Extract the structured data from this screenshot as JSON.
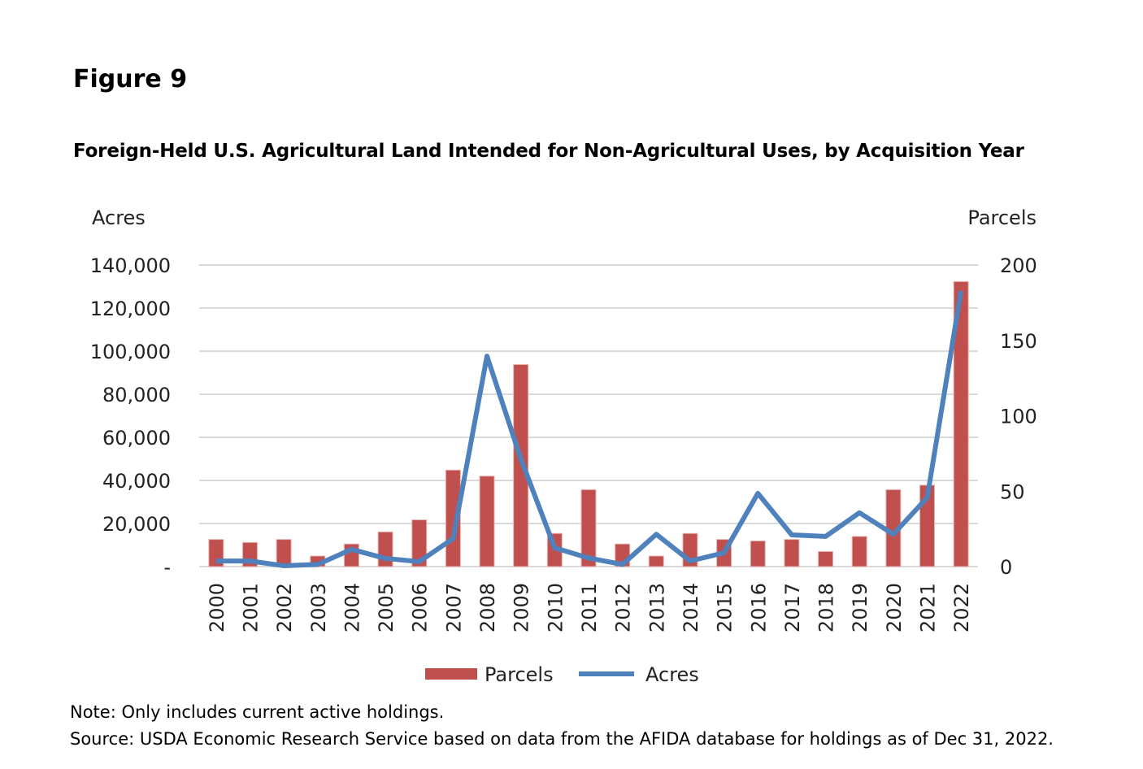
{
  "figure_label": "Figure 9",
  "note": "Note: Only includes current active holdings.",
  "source": "Source: USDA Economic Research Service based on data from the AFIDA database for holdings as of Dec 31, 2022.",
  "chart_data": {
    "type": "bar+line",
    "title": "Foreign-Held U.S. Agricultural Land Intended for Non-Agricultural Uses, by Acquisition Year",
    "categories": [
      "2000",
      "2001",
      "2002",
      "2003",
      "2004",
      "2005",
      "2006",
      "2007",
      "2008",
      "2009",
      "2010",
      "2011",
      "2012",
      "2013",
      "2014",
      "2015",
      "2016",
      "2017",
      "2018",
      "2019",
      "2020",
      "2021",
      "2022"
    ],
    "left_axis": {
      "label": "Acres",
      "ylim": [
        0,
        140000
      ],
      "ticks": [
        "-",
        "20,000",
        "40,000",
        "60,000",
        "80,000",
        "100,000",
        "120,000",
        "140,000"
      ]
    },
    "right_axis": {
      "label": "Parcels",
      "ylim": [
        0,
        200
      ],
      "ticks": [
        "0",
        "50",
        "100",
        "150",
        "200"
      ]
    },
    "grid": true,
    "legend_position": "bottom",
    "series": [
      {
        "name": "Parcels",
        "type": "bar",
        "axis": "right",
        "color": "#C0504D",
        "values": [
          18,
          16,
          18,
          7,
          15,
          23,
          31,
          64,
          60,
          134,
          22,
          51,
          15,
          7,
          22,
          18,
          17,
          18,
          10,
          20,
          51,
          54,
          189
        ]
      },
      {
        "name": "Acres",
        "type": "line",
        "axis": "left",
        "color": "#4F81BD",
        "values": [
          2600,
          2600,
          400,
          1000,
          8000,
          3800,
          2300,
          13000,
          97700,
          50000,
          8700,
          4000,
          1000,
          15000,
          2600,
          6400,
          34000,
          14700,
          14000,
          25000,
          15000,
          32000,
          128000
        ]
      }
    ]
  }
}
